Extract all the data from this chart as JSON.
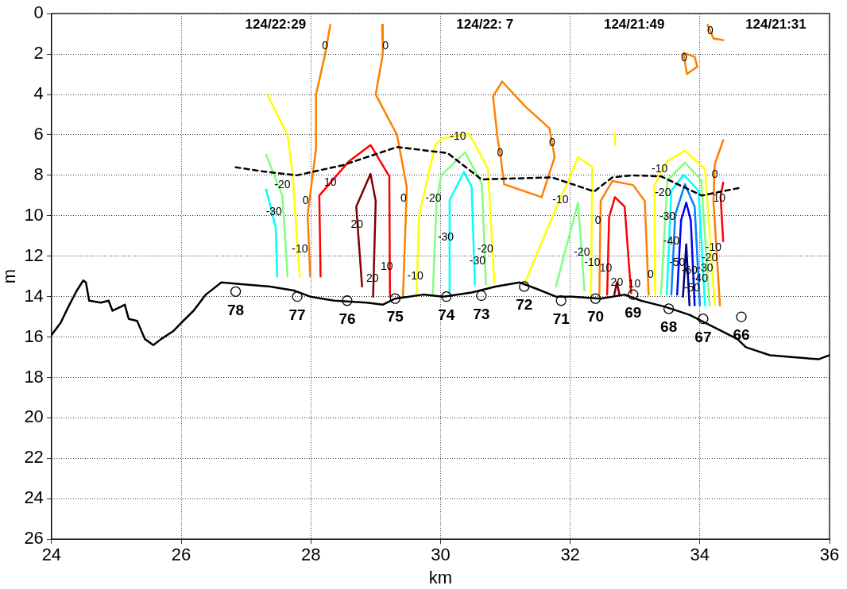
{
  "chart_data": {
    "type": "line",
    "xlabel": "km",
    "ylabel": "m",
    "xlim": [
      24,
      36
    ],
    "xticks": [
      24,
      26,
      28,
      30,
      32,
      34,
      36
    ],
    "ylim": [
      26,
      0
    ],
    "yticks": [
      0,
      2,
      4,
      6,
      8,
      10,
      12,
      14,
      16,
      18,
      20,
      22,
      24,
      26
    ],
    "grid": true,
    "series": [
      {
        "type": "line",
        "color": "#000000",
        "line_style": "solid",
        "x": [
          24,
          24.14,
          24.26,
          24.39,
          24.49,
          24.53,
          24.58,
          24.76,
          24.88,
          24.94,
          25.07,
          25.13,
          25.19,
          25.32,
          25.44,
          25.57,
          25.69,
          25.88,
          26.0,
          26.19,
          26.38,
          26.62,
          27.0,
          27.37,
          27.74,
          27.99,
          28.36,
          28.86,
          29.11,
          29.3,
          29.73,
          30.04,
          30.48,
          30.85,
          31.22,
          31.47,
          31.78,
          32.03,
          32.47,
          32.84,
          33.09,
          33.46,
          33.84,
          34.21,
          34.58,
          34.71,
          35.08,
          35.45,
          35.83,
          36
        ],
        "values": [
          15.9,
          15.3,
          14.5,
          13.7,
          13.2,
          13.3,
          14.2,
          14.3,
          14.2,
          14.7,
          14.5,
          14.4,
          15.1,
          15.2,
          16.1,
          16.4,
          16.1,
          15.7,
          15.3,
          14.7,
          13.9,
          13.3,
          13.4,
          13.5,
          13.7,
          14.0,
          14.2,
          14.3,
          14.4,
          14.1,
          13.9,
          14.0,
          13.8,
          13.5,
          13.3,
          13.6,
          14.0,
          14.0,
          14.1,
          13.9,
          14.2,
          14.5,
          14.9,
          15.5,
          16.1,
          16.5,
          16.9,
          17.0,
          17.1,
          16.9
        ]
      },
      {
        "type": "line",
        "color": "#000000",
        "line_style": "dashed",
        "x": [
          26.84,
          27.25,
          27.78,
          28.49,
          29.33,
          30.11,
          30.63,
          31.72,
          32.37,
          32.65,
          32.97,
          33.4,
          34.03,
          34.64
        ],
        "values": [
          7.6,
          7.8,
          8.0,
          7.5,
          6.6,
          6.9,
          8.2,
          8.1,
          8.8,
          8.1,
          8.0,
          8.05,
          9.0,
          8.6
        ]
      },
      {
        "type": "scatter",
        "color": "#000000",
        "marker": "circle",
        "x": [
          26.84,
          27.79,
          28.56,
          29.3,
          30.09,
          30.63,
          31.29,
          31.86,
          32.39,
          32.97,
          33.52,
          34.05,
          34.64
        ],
        "values": [
          13.75,
          14.0,
          14.2,
          14.1,
          14.0,
          13.95,
          13.5,
          14.2,
          14.1,
          13.9,
          14.6,
          15.1,
          15.0
        ]
      },
      {
        "type": "line",
        "color": "#ff8000",
        "x": [
          28.3,
          28.22,
          28.08,
          28.08,
          28.02,
          27.95,
          27.99
        ],
        "values": [
          0.55,
          2.0,
          4.0,
          6.66,
          8.2,
          9.95,
          13.0
        ]
      },
      {
        "type": "line",
        "color": "#ff7f00",
        "x": [
          29.1,
          29.11,
          29.0,
          29.33,
          29.48,
          29.42
        ],
        "values": [
          0.55,
          2.0,
          4.0,
          6.0,
          8.6,
          14.0
        ]
      },
      {
        "type": "line",
        "color": "#ffff00",
        "x": [
          27.32,
          27.64,
          27.72,
          27.8,
          27.83
        ],
        "values": [
          3.96,
          6.0,
          7.97,
          11.9,
          13.0
        ]
      },
      {
        "type": "line",
        "color": "#80ff80",
        "x": [
          27.31,
          27.56,
          27.64
        ],
        "values": [
          6.98,
          9.0,
          13.0
        ]
      },
      {
        "type": "line",
        "color": "#00ffff",
        "x": [
          27.31,
          27.46,
          27.48
        ],
        "values": [
          8.7,
          10.6,
          13.0
        ]
      },
      {
        "type": "line",
        "color": "#ff0000",
        "x": [
          28.15,
          28.13,
          28.58,
          28.92,
          29.21,
          29.22
        ],
        "values": [
          13.0,
          9.0,
          7.33,
          6.5,
          8.05,
          14.0
        ]
      },
      {
        "type": "line",
        "color": "#800000",
        "x": [
          28.79,
          28.7,
          28.92,
          29.0,
          28.96
        ],
        "values": [
          13.5,
          9.55,
          7.93,
          9.27,
          14.0
        ]
      },
      {
        "type": "line",
        "color": "#ffff00",
        "x": [
          29.63,
          29.67,
          29.92,
          30.02,
          30.44,
          30.73,
          30.83
        ],
        "values": [
          13.9,
          9.95,
          6.5,
          6.18,
          5.95,
          7.65,
          13.3
        ]
      },
      {
        "type": "line",
        "color": "#80ff80",
        "x": [
          29.88,
          29.94,
          30.01,
          30.38,
          30.64,
          30.7
        ],
        "values": [
          13.9,
          9.27,
          8.0,
          6.86,
          8.44,
          13.4
        ]
      },
      {
        "type": "line",
        "color": "#00ffff",
        "x": [
          30.13,
          30.14,
          30.36,
          30.48,
          30.53
        ],
        "values": [
          13.8,
          9.22,
          7.84,
          8.56,
          13.4
        ]
      },
      {
        "type": "line",
        "color": "#fe8000",
        "x": [
          30.81,
          30.95
        ],
        "values": [
          4.08,
          3.36
        ]
      },
      {
        "type": "line",
        "color": "#ff8002",
        "x": [
          30.81,
          30.88,
          30.92,
          30.98,
          31.56,
          31.76
        ],
        "values": [
          4.08,
          6.18,
          6.9,
          8.44,
          9.08,
          7.1
        ]
      },
      {
        "type": "line",
        "color": "#fe8100",
        "x": [
          30.95,
          31.31,
          31.68,
          31.72,
          31.76
        ],
        "values": [
          3.36,
          4.6,
          5.67,
          6.38,
          7.1
        ]
      },
      {
        "type": "line",
        "color": "#ffff00",
        "x": [
          31.29,
          31.78,
          31.93,
          32.12,
          32.34,
          32.32
        ],
        "values": [
          13.4,
          9.63,
          8.56,
          7.1,
          7.57,
          14.0
        ]
      },
      {
        "type": "line",
        "color": "#80ff80",
        "x": [
          31.78,
          32.12,
          32.22
        ],
        "values": [
          13.5,
          9.35,
          13.7
        ]
      },
      {
        "type": "line",
        "color": "#ffff00",
        "x": [
          32.69,
          32.69
        ],
        "values": [
          5.9,
          6.5
        ]
      },
      {
        "type": "line",
        "color": "#ff8100",
        "x": [
          32.45,
          32.47,
          32.65,
          32.97,
          33.15,
          33.21
        ],
        "values": [
          13.9,
          9.27,
          8.28,
          8.48,
          9.27,
          13.9
        ]
      },
      {
        "type": "line",
        "color": "#ff0000",
        "x": [
          32.57,
          32.6,
          32.69,
          32.84,
          32.94
        ],
        "values": [
          13.9,
          10.07,
          9.08,
          9.55,
          13.83
        ]
      },
      {
        "type": "line",
        "color": "#800000",
        "x": [
          32.68,
          32.72,
          32.76
        ],
        "values": [
          13.9,
          13.3,
          13.9
        ]
      },
      {
        "type": "line",
        "color": "#ffff00",
        "x": [
          33.31,
          33.3,
          33.5,
          33.77,
          34.08,
          34.23
        ],
        "values": [
          13.9,
          8.48,
          7.29,
          6.78,
          7.69,
          14.43
        ]
      },
      {
        "type": "line",
        "color": "#80ff80",
        "x": [
          33.4,
          33.5,
          33.77,
          34.02,
          34.15
        ],
        "values": [
          13.9,
          8.24,
          7.37,
          8.24,
          14.43
        ]
      },
      {
        "type": "line",
        "color": "#00ffff",
        "x": [
          33.49,
          33.56,
          33.75,
          33.98,
          34.08
        ],
        "values": [
          13.9,
          8.76,
          7.97,
          8.76,
          14.43
        ]
      },
      {
        "type": "line",
        "color": "#0080ff",
        "x": [
          33.56,
          33.62,
          33.77,
          33.92,
          34.0
        ],
        "values": [
          13.9,
          9.95,
          8.44,
          9.55,
          14.43
        ]
      },
      {
        "type": "line",
        "color": "#0000ff",
        "x": [
          33.65,
          33.71,
          33.79,
          33.86,
          33.92
        ],
        "values": [
          13.9,
          10.23,
          9.35,
          10.23,
          14.43
        ]
      },
      {
        "type": "line",
        "color": "#000080",
        "x": [
          33.74,
          33.79,
          33.84
        ],
        "values": [
          14.0,
          11.41,
          14.43
        ]
      },
      {
        "type": "line",
        "color": "#fe7f00",
        "x": [
          34.31,
          34.21,
          34.23,
          34.36
        ],
        "values": [
          14.43,
          9.27,
          7.45,
          6.26
        ]
      },
      {
        "type": "line",
        "color": "#ff0000",
        "x": [
          34.36,
          34.32,
          34.36
        ],
        "values": [
          11.25,
          9.04,
          8.36
        ]
      },
      {
        "type": "line",
        "color": "#ff8001",
        "x": [
          33.75,
          33.92,
          33.96
        ],
        "values": [
          1.94,
          2.14,
          2.62
        ]
      },
      {
        "type": "line",
        "color": "#fe8001",
        "x": [
          33.75,
          33.76,
          33.8,
          33.96
        ],
        "values": [
          1.94,
          2.2,
          2.99,
          2.62
        ]
      },
      {
        "type": "line",
        "color": "#fd8000",
        "x": [
          34.12,
          34.21,
          34.36
        ],
        "values": [
          0.55,
          1.23,
          1.31
        ]
      }
    ],
    "annotations": [
      "124/22:29",
      "124/22: 7",
      "124/21:49",
      "124/21:31",
      {
        "text": "78",
        "x": 26.84,
        "y": 13.75
      },
      {
        "text": "77",
        "x": 27.79,
        "y": 14.0
      },
      {
        "text": "76",
        "x": 28.56,
        "y": 14.2
      },
      {
        "text": "75",
        "x": 29.3,
        "y": 14.1
      },
      {
        "text": "74",
        "x": 30.09,
        "y": 14.0
      },
      {
        "text": "73",
        "x": 30.63,
        "y": 13.95
      },
      {
        "text": "72",
        "x": 31.29,
        "y": 13.5
      },
      {
        "text": "71",
        "x": 31.86,
        "y": 14.2
      },
      {
        "text": "70",
        "x": 32.39,
        "y": 14.1
      },
      {
        "text": "69",
        "x": 32.97,
        "y": 13.9
      },
      {
        "text": "68",
        "x": 33.52,
        "y": 14.6
      },
      {
        "text": "67",
        "x": 34.05,
        "y": 15.1
      },
      {
        "text": "66",
        "x": 34.64,
        "y": 15.0
      },
      {
        "text": "0",
        "x": 28.22,
        "y": 1.6
      },
      {
        "text": "0",
        "x": 29.15,
        "y": 1.6
      },
      {
        "text": "-20",
        "x": 27.56,
        "y": 8.48
      },
      {
        "text": "-30",
        "x": 27.43,
        "y": 9.8
      },
      {
        "text": "0",
        "x": 27.92,
        "y": 9.27
      },
      {
        "text": "-10",
        "x": 27.83,
        "y": 11.65
      },
      {
        "text": "10",
        "x": 28.3,
        "y": 8.37
      },
      {
        "text": "20",
        "x": 28.71,
        "y": 10.46
      },
      {
        "text": "10",
        "x": 29.17,
        "y": 12.52
      },
      {
        "text": "20",
        "x": 28.95,
        "y": 13.1
      },
      {
        "text": "0",
        "x": 29.43,
        "y": 9.16
      },
      {
        "text": "-20",
        "x": 29.89,
        "y": 9.16
      },
      {
        "text": "-10",
        "x": 29.61,
        "y": 13.0
      },
      {
        "text": "-10",
        "x": 30.27,
        "y": 6.1
      },
      {
        "text": "-30",
        "x": 30.08,
        "y": 11.06
      },
      {
        "text": "-30",
        "x": 30.57,
        "y": 12.25
      },
      {
        "text": "-20",
        "x": 30.69,
        "y": 11.65
      },
      {
        "text": "0",
        "x": 30.92,
        "y": 6.9
      },
      {
        "text": "0",
        "x": 31.72,
        "y": 6.38
      },
      {
        "text": "-10",
        "x": 31.85,
        "y": 9.22
      },
      {
        "text": "-20",
        "x": 32.18,
        "y": 11.8
      },
      {
        "text": "-10",
        "x": 32.34,
        "y": 12.33
      },
      {
        "text": "0",
        "x": 32.43,
        "y": 10.23
      },
      {
        "text": "10",
        "x": 32.55,
        "y": 12.6
      },
      {
        "text": "20",
        "x": 32.72,
        "y": 13.3
      },
      {
        "text": "10",
        "x": 32.99,
        "y": 13.4
      },
      {
        "text": "0",
        "x": 33.24,
        "y": 12.92
      },
      {
        "text": "-10",
        "x": 33.38,
        "y": 7.69
      },
      {
        "text": "-20",
        "x": 33.43,
        "y": 8.88
      },
      {
        "text": "-30",
        "x": 33.5,
        "y": 10.07
      },
      {
        "text": "-40",
        "x": 33.56,
        "y": 11.25
      },
      {
        "text": "-50",
        "x": 33.65,
        "y": 12.33
      },
      {
        "text": "-60",
        "x": 33.84,
        "y": 12.72
      },
      {
        "text": "-50",
        "x": 33.88,
        "y": 13.6
      },
      {
        "text": "-40",
        "x": 34.0,
        "y": 13.1
      },
      {
        "text": "-30",
        "x": 34.08,
        "y": 12.6
      },
      {
        "text": "-20",
        "x": 34.15,
        "y": 12.1
      },
      {
        "text": "-10",
        "x": 34.21,
        "y": 11.6
      },
      {
        "text": "0",
        "x": 34.23,
        "y": 7.97
      },
      {
        "text": "10",
        "x": 34.3,
        "y": 9.16
      },
      {
        "text": "0",
        "x": 33.76,
        "y": 2.2
      },
      {
        "text": "0",
        "x": 34.16,
        "y": 0.85
      }
    ]
  }
}
